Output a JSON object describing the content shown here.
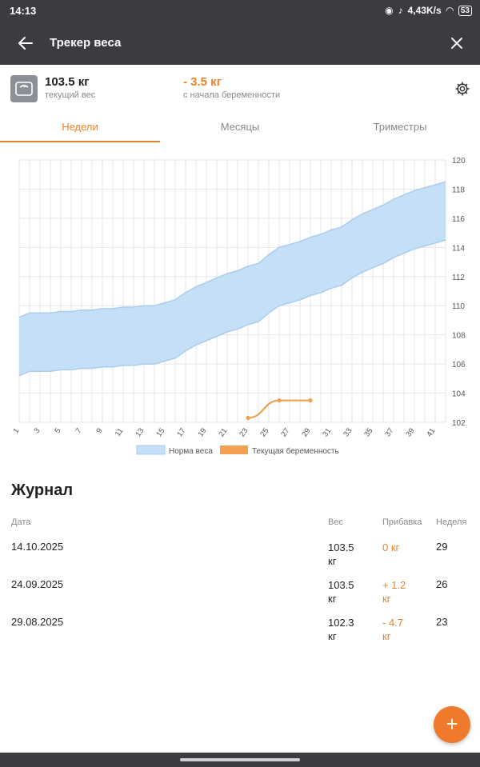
{
  "status": {
    "time": "14:13",
    "speed": "4,43K/s",
    "battery": "53"
  },
  "appbar": {
    "title": "Трекер веса"
  },
  "summary": {
    "current_weight": "103.5 кг",
    "current_label": "текущий вес",
    "change_value": "- 3.5 кг",
    "change_label": "с начала беременности"
  },
  "tabs": [
    {
      "label": "Недели"
    },
    {
      "label": "Месяцы"
    },
    {
      "label": "Триместры"
    }
  ],
  "chart_data": {
    "type": "area",
    "x_ticks": [
      1,
      3,
      5,
      7,
      9,
      11,
      13,
      15,
      17,
      19,
      21,
      23,
      25,
      27,
      29,
      31,
      33,
      35,
      37,
      39,
      41
    ],
    "y_ticks": [
      102,
      104,
      106,
      108,
      110,
      112,
      114,
      116,
      118,
      120
    ],
    "xlim": [
      1,
      42
    ],
    "ylim": [
      102,
      120
    ],
    "grid": true,
    "legend_position": "bottom-center",
    "series": [
      {
        "name": "Норма веса",
        "kind": "band",
        "color": "#c5dff6",
        "x": [
          1,
          2,
          3,
          4,
          5,
          6,
          7,
          8,
          9,
          10,
          11,
          12,
          13,
          14,
          15,
          16,
          17,
          18,
          19,
          20,
          21,
          22,
          23,
          24,
          25,
          26,
          27,
          28,
          29,
          30,
          31,
          32,
          33,
          34,
          35,
          36,
          37,
          38,
          39,
          40,
          41,
          42
        ],
        "lower": [
          105.2,
          105.5,
          105.5,
          105.5,
          105.6,
          105.6,
          105.7,
          105.7,
          105.8,
          105.8,
          105.9,
          105.9,
          106.0,
          106.0,
          106.2,
          106.4,
          106.9,
          107.3,
          107.6,
          107.9,
          108.2,
          108.4,
          108.7,
          108.9,
          109.5,
          110.0,
          110.2,
          110.4,
          110.7,
          110.9,
          111.2,
          111.4,
          111.9,
          112.3,
          112.6,
          112.9,
          113.3,
          113.6,
          113.9,
          114.1,
          114.3,
          114.5
        ],
        "upper": [
          109.2,
          109.5,
          109.5,
          109.5,
          109.6,
          109.6,
          109.7,
          109.7,
          109.8,
          109.8,
          109.9,
          109.9,
          110.0,
          110.0,
          110.2,
          110.4,
          110.9,
          111.3,
          111.6,
          111.9,
          112.2,
          112.4,
          112.7,
          112.9,
          113.5,
          114.0,
          114.2,
          114.4,
          114.7,
          114.9,
          115.2,
          115.4,
          115.9,
          116.3,
          116.6,
          116.9,
          117.3,
          117.6,
          117.9,
          118.1,
          118.3,
          118.5
        ]
      },
      {
        "name": "Текущая беременность",
        "kind": "line",
        "color": "#f0a050",
        "x": [
          23,
          26,
          29
        ],
        "values": [
          102.3,
          103.5,
          103.5
        ]
      }
    ]
  },
  "journal": {
    "title": "Журнал",
    "headers": {
      "date": "Дата",
      "weight": "Вес",
      "gain": "Прибавка",
      "week": "Неделя"
    },
    "rows": [
      {
        "date": "14.10.2025",
        "weight": "103.5",
        "unit": "кг",
        "gain": "0 кг",
        "gain_unit": "",
        "week": "29"
      },
      {
        "date": "24.09.2025",
        "weight": "103.5",
        "unit": "кг",
        "gain": "+ 1.2",
        "gain_unit": "кг",
        "week": "26"
      },
      {
        "date": "29.08.2025",
        "weight": "102.3",
        "unit": "кг",
        "gain": "- 4.7",
        "gain_unit": "кг",
        "week": "23"
      }
    ]
  },
  "fab": {
    "label": "+"
  }
}
